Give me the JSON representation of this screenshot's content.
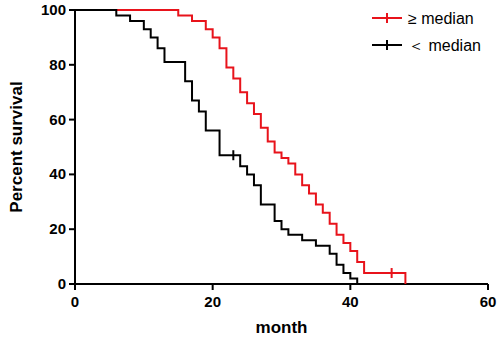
{
  "chart_data": {
    "type": "step",
    "x_label": "month",
    "y_label": "Percent survival",
    "xlim": [
      0,
      60
    ],
    "xticks": [
      0,
      20,
      40,
      60
    ],
    "ylim": [
      0,
      100
    ],
    "yticks": [
      0,
      20,
      40,
      60,
      80,
      100
    ],
    "legend": "top-right",
    "marker": "tick",
    "series": [
      {
        "name": "≥ median",
        "color": "#e8131b",
        "x": [
          0,
          15,
          17,
          19,
          20,
          21,
          22,
          23,
          24,
          25,
          26,
          27,
          28,
          29,
          30,
          31,
          32,
          33,
          34,
          35,
          36,
          37,
          38,
          39,
          40,
          41,
          42,
          48
        ],
        "values": [
          100,
          98,
          96,
          93,
          90,
          86,
          79,
          75,
          70,
          66,
          62,
          57,
          52,
          48,
          46,
          44,
          40,
          36,
          33,
          29,
          26,
          22,
          18,
          15,
          12,
          8,
          4,
          0
        ],
        "censored": [
          46
        ]
      },
      {
        "name": "＜ median",
        "color": "#000000",
        "x": [
          0,
          6,
          8,
          10,
          11,
          12,
          13,
          16,
          17,
          18,
          19,
          21,
          24,
          25,
          26,
          27,
          29,
          30,
          31,
          33,
          35,
          37,
          38,
          39,
          40,
          41
        ],
        "values": [
          100,
          98,
          96,
          93,
          90,
          86,
          81,
          74,
          67,
          63,
          56,
          47,
          43,
          40,
          36,
          29,
          23,
          20,
          18,
          16,
          14,
          11,
          7,
          4,
          2,
          0
        ],
        "censored": [
          23
        ]
      }
    ]
  }
}
